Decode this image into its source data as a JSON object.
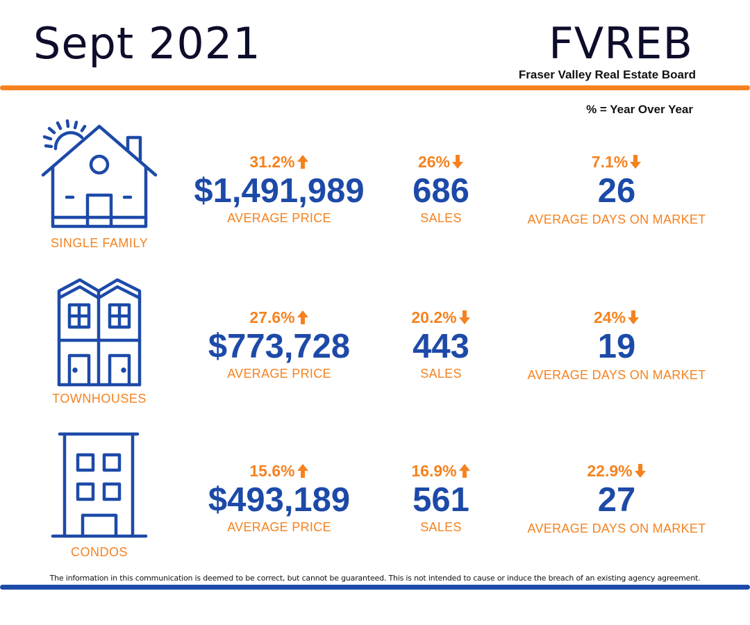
{
  "header": {
    "title": "Sept 2021",
    "brand": "FVREB",
    "brand_subtitle": "Fraser Valley Real Estate Board",
    "yoy_note": "% = Year Over Year"
  },
  "colors": {
    "accent_orange": "#f5821f",
    "accent_blue": "#1d4aa8",
    "text_dark": "#0d0d2b"
  },
  "rows": [
    {
      "category": "SINGLE FAMILY",
      "icon": "house-icon",
      "price": {
        "pct": "31.2%",
        "direction": "up",
        "value": "$1,491,989",
        "label": "AVERAGE PRICE"
      },
      "sales": {
        "pct": "26%",
        "direction": "down",
        "value": "686",
        "label": "SALES"
      },
      "days": {
        "pct": "7.1%",
        "direction": "down",
        "value": "26",
        "label": "AVERAGE DAYS ON MARKET"
      }
    },
    {
      "category": "TOWNHOUSES",
      "icon": "townhouse-icon",
      "price": {
        "pct": "27.6%",
        "direction": "up",
        "value": "$773,728",
        "label": "AVERAGE PRICE"
      },
      "sales": {
        "pct": "20.2%",
        "direction": "down",
        "value": "443",
        "label": "SALES"
      },
      "days": {
        "pct": "24%",
        "direction": "down",
        "value": "19",
        "label": "AVERAGE DAYS ON MARKET"
      }
    },
    {
      "category": "CONDOS",
      "icon": "condo-building-icon",
      "price": {
        "pct": "15.6%",
        "direction": "up",
        "value": "$493,189",
        "label": "AVERAGE PRICE"
      },
      "sales": {
        "pct": "16.9%",
        "direction": "up",
        "value": "561",
        "label": "SALES"
      },
      "days": {
        "pct": "22.9%",
        "direction": "down",
        "value": "27",
        "label": "AVERAGE DAYS ON MARKET"
      }
    }
  ],
  "footer": {
    "disclaimer": "The information in this communication is deemed to be correct, but cannot be guaranteed. This is not intended to cause or induce the breach of an existing agency agreement."
  }
}
